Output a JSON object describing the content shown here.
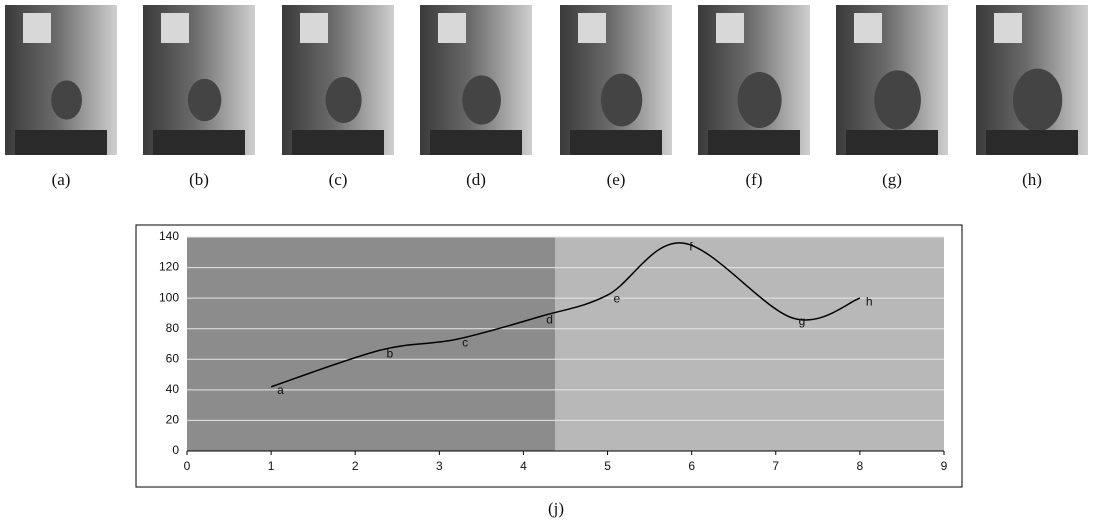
{
  "panels": [
    "(a)",
    "(b)",
    "(c)",
    "(d)",
    "(e)",
    "(f)",
    "(g)",
    "(h)"
  ],
  "caption": "(j)",
  "chart_data": {
    "type": "line",
    "x": [
      1,
      2.3,
      3.2,
      4.2,
      5,
      5.9,
      7.2,
      8
    ],
    "series": [
      {
        "color": "#000000",
        "values": [
          42,
          66,
          73,
          88,
          102,
          136,
          87,
          100
        ]
      }
    ],
    "point_labels": [
      "a",
      "b",
      "c",
      "d",
      "e",
      "f",
      "g",
      "h"
    ],
    "xlim": [
      0,
      9
    ],
    "xticks": [
      0,
      1,
      2,
      3,
      4,
      5,
      6,
      7,
      8,
      9
    ],
    "ylim": [
      0,
      140
    ],
    "yticks": [
      0,
      20,
      40,
      60,
      80,
      100,
      120,
      140
    ],
    "grid": true
  }
}
